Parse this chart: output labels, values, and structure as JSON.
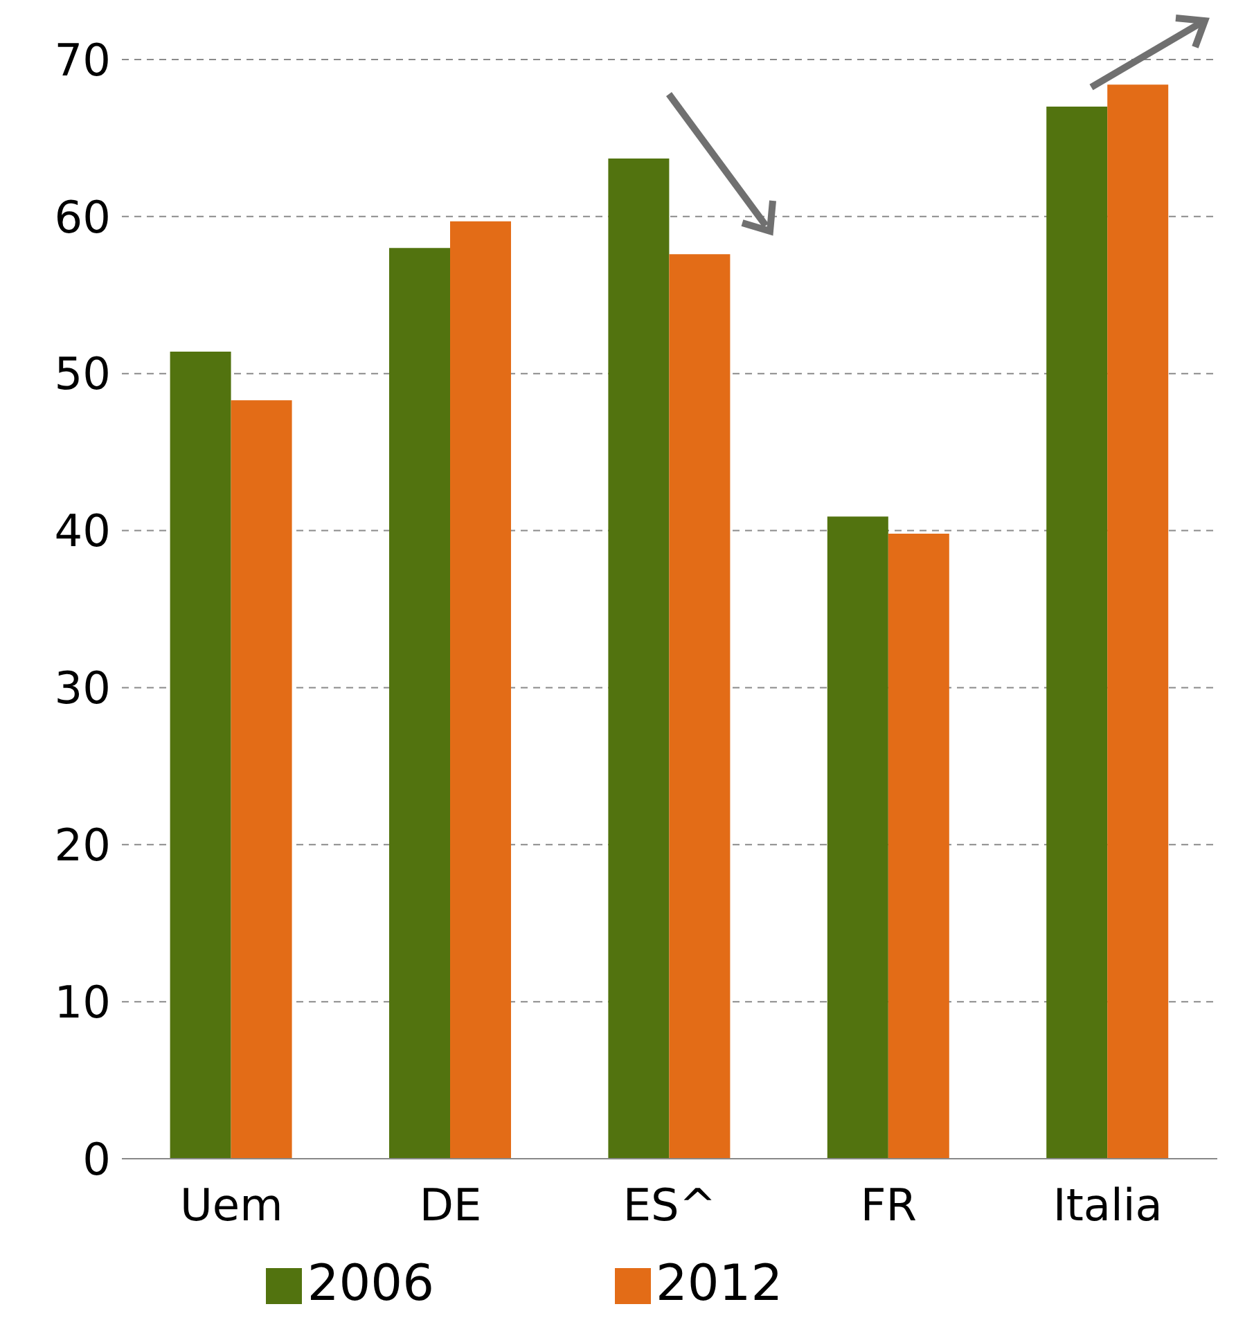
{
  "chart_data": {
    "type": "bar",
    "categories": [
      "Uem",
      "DE",
      "ES^",
      "FR",
      "Italia"
    ],
    "series": [
      {
        "name": "2006",
        "color": "#52730f",
        "values": [
          51.4,
          58.0,
          63.7,
          40.9,
          67.0
        ]
      },
      {
        "name": "2012",
        "color": "#e36c17",
        "values": [
          48.3,
          59.7,
          57.6,
          39.8,
          68.4
        ]
      }
    ],
    "ylim": [
      0,
      70
    ],
    "yticks": [
      0,
      10,
      20,
      30,
      40,
      50,
      60,
      70
    ],
    "grid": "y",
    "legend": "bottom"
  }
}
